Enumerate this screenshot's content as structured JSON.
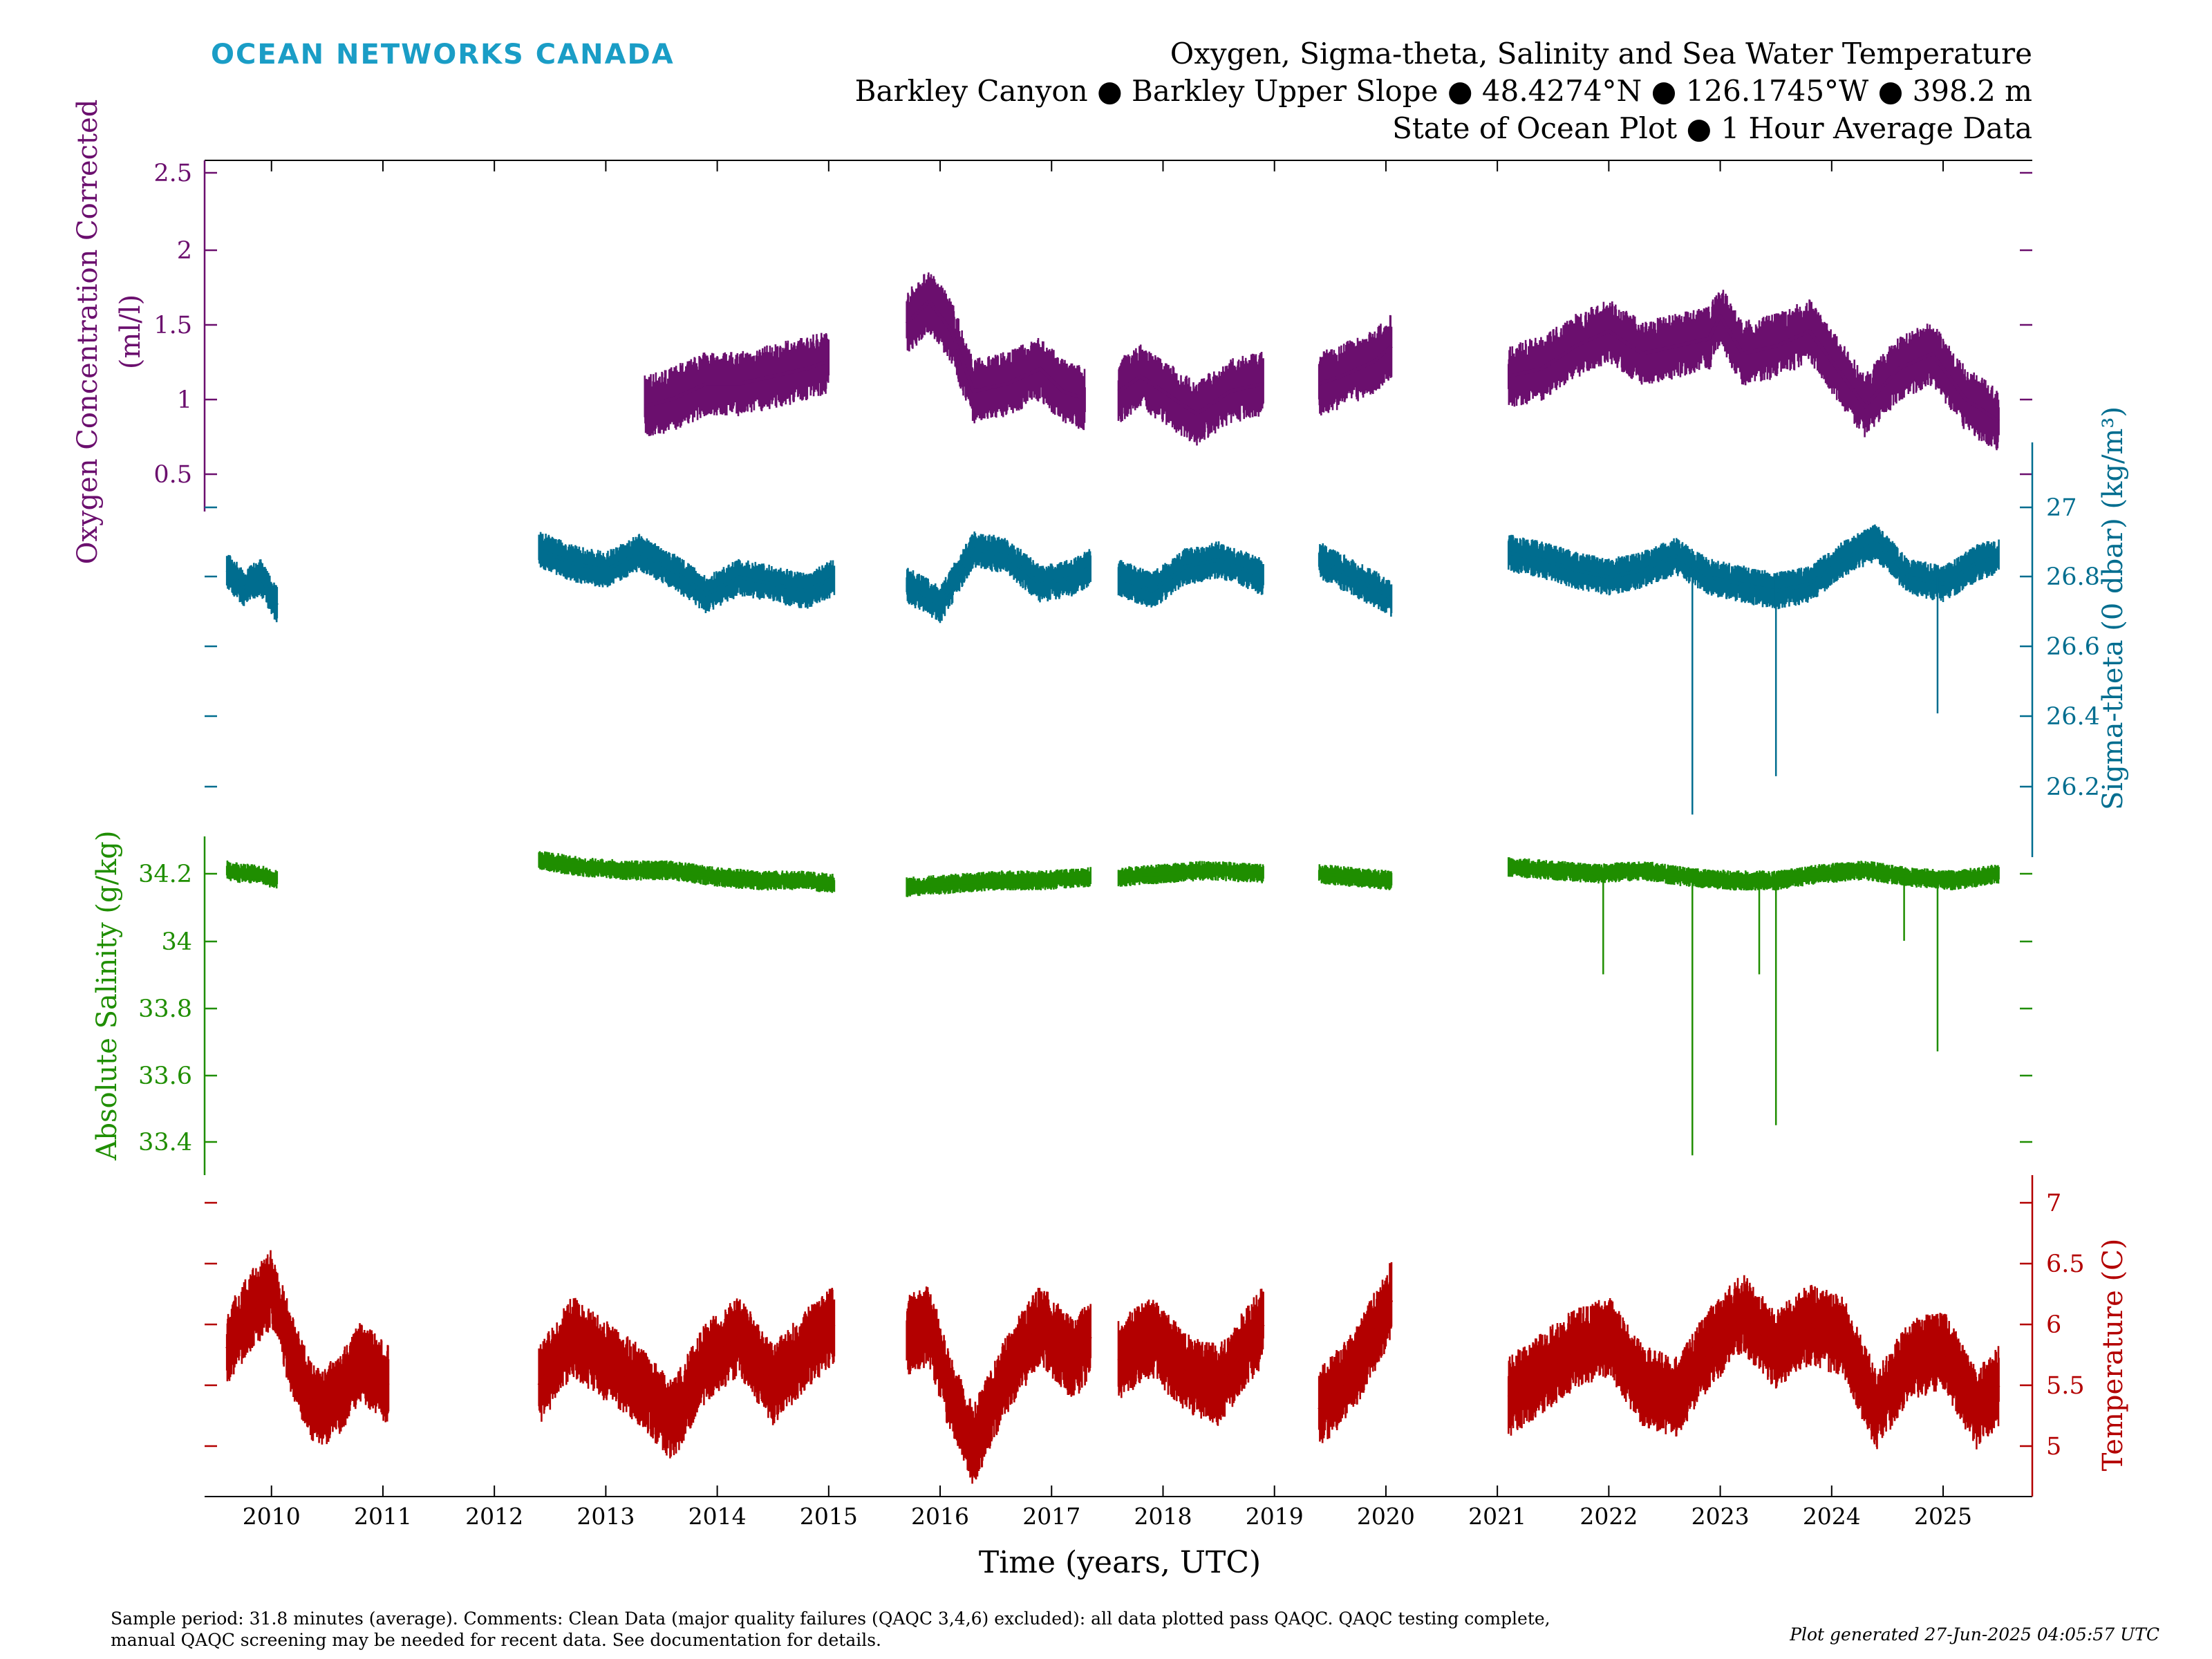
{
  "brand": {
    "name": "OCEAN NETWORKS CANADA",
    "color": "#1a9dc6"
  },
  "header": {
    "line1": "Oxygen, Sigma-theta, Salinity and Sea Water Temperature",
    "line2": "Barkley Canyon ● Barkley Upper Slope ● 48.4274°N ● 126.1745°W ● 398.2 m",
    "line3": "State of Ocean Plot ● 1 Hour Average Data"
  },
  "footer": {
    "note_line1": "Sample period: 31.8 minutes (average). Comments: Clean Data (major quality failures (QAQC 3,4,6) excluded): all data plotted pass QAQC. QAQC testing complete,",
    "note_line2": "manual QAQC screening may be needed for recent data. See documentation for details.",
    "generated": "Plot generated 27-Jun-2025 04:05:57 UTC"
  },
  "chart_data": {
    "type": "scatter",
    "xlabel": "Time (years, UTC)",
    "xlim": [
      2009.4,
      2025.8
    ],
    "x_ticks": [
      2010,
      2011,
      2012,
      2013,
      2014,
      2015,
      2016,
      2017,
      2018,
      2019,
      2020,
      2021,
      2022,
      2023,
      2024,
      2025
    ],
    "x_tick_labels": [
      "2010",
      "2011",
      "2012",
      "2013",
      "2014",
      "2015",
      "2016",
      "2017",
      "2018",
      "2019",
      "2020",
      "2021",
      "2022",
      "2023",
      "2024",
      "2025"
    ],
    "grid": false,
    "axes": [
      {
        "key": "oxygen",
        "side": "left",
        "label": "Oxygen Concentration Corrected (ml/l)",
        "label_lines": [
          "Oxygen Concentration Corrected",
          "(ml/l)"
        ],
        "color": "#6b0f6e",
        "ylim": [
          0.25,
          2.6
        ],
        "ticks": [
          0.5,
          1,
          1.5,
          2,
          2.5
        ],
        "tick_labels": [
          "0.5",
          "1",
          "1.5",
          "2",
          "2.5"
        ]
      },
      {
        "key": "sigma",
        "side": "right",
        "label": "Sigma-theta (0 dbar) (kg/m³)",
        "color": "#006d8f",
        "ylim": [
          26.0,
          27.0
        ],
        "ticks": [
          26.2,
          26.4,
          26.6,
          26.8,
          27.0
        ],
        "tick_labels": [
          "26.2",
          "26.4",
          "26.6",
          "26.8",
          "27"
        ]
      },
      {
        "key": "salinity",
        "side": "left",
        "label": "Absolute Salinity (g/kg)",
        "color": "#1f8e00",
        "ylim": [
          33.4,
          34.2
        ],
        "ticks": [
          33.4,
          33.6,
          33.8,
          34.0,
          34.2
        ],
        "tick_labels": [
          "33.4",
          "33.6",
          "33.8",
          "34",
          "34.2"
        ]
      },
      {
        "key": "temperature",
        "side": "right",
        "label": "Temperature (C)",
        "color": "#b30000",
        "ylim": [
          4.6,
          7.0
        ],
        "ticks": [
          5,
          5.5,
          6,
          6.5,
          7
        ],
        "tick_labels": [
          "5",
          "5.5",
          "6",
          "6.5",
          "7"
        ]
      }
    ],
    "series": [
      {
        "name": "",
        "axis": "oxygen",
        "segments": [
          {
            "x": [
              2013.35,
              2013.6,
              2013.9,
              2014.2,
              2014.5,
              2014.8,
              2015.0
            ],
            "y": [
              0.95,
              1.0,
              1.1,
              1.1,
              1.15,
              1.2,
              1.25
            ]
          },
          {
            "x": [
              2015.7,
              2015.9,
              2016.1,
              2016.3,
              2016.6,
              2016.9,
              2017.1,
              2017.3
            ],
            "y": [
              1.5,
              1.65,
              1.45,
              1.05,
              1.1,
              1.2,
              1.05,
              1.0
            ]
          },
          {
            "x": [
              2017.6,
              2017.8,
              2018.1,
              2018.3,
              2018.6,
              2018.9
            ],
            "y": [
              1.05,
              1.15,
              1.0,
              0.9,
              1.05,
              1.1
            ]
          },
          {
            "x": [
              2019.4,
              2019.6,
              2019.9,
              2020.05
            ],
            "y": [
              1.1,
              1.15,
              1.25,
              1.35
            ]
          },
          {
            "x": [
              2021.1,
              2021.4,
              2021.7,
              2022.0,
              2022.3,
              2022.6,
              2022.9,
              2023.0,
              2023.2,
              2023.5,
              2023.8,
              2024.0,
              2024.3,
              2024.6,
              2024.9,
              2025.2,
              2025.5
            ],
            "y": [
              1.15,
              1.2,
              1.35,
              1.45,
              1.3,
              1.35,
              1.4,
              1.55,
              1.3,
              1.35,
              1.45,
              1.25,
              0.95,
              1.2,
              1.3,
              1.0,
              0.85
            ]
          }
        ]
      },
      {
        "name": "",
        "axis": "sigma",
        "segments": [
          {
            "x": [
              2009.6,
              2009.75,
              2009.9,
              2010.05
            ],
            "y": [
              26.82,
              26.77,
              26.8,
              26.72
            ]
          },
          {
            "x": [
              2012.4,
              2012.7,
              2013.0,
              2013.3,
              2013.6,
              2013.9,
              2014.2,
              2014.5,
              2014.8,
              2015.05
            ],
            "y": [
              26.88,
              26.84,
              26.82,
              26.87,
              26.82,
              26.75,
              26.8,
              26.78,
              26.76,
              26.8
            ]
          },
          {
            "x": [
              2015.7,
              2016.0,
              2016.3,
              2016.6,
              2016.9,
              2017.2,
              2017.35
            ],
            "y": [
              26.78,
              26.72,
              26.88,
              26.86,
              26.78,
              26.8,
              26.83
            ]
          },
          {
            "x": [
              2017.6,
              2017.9,
              2018.2,
              2018.5,
              2018.9
            ],
            "y": [
              26.8,
              26.76,
              26.83,
              26.85,
              26.8
            ]
          },
          {
            "x": [
              2019.4,
              2019.7,
              2020.05
            ],
            "y": [
              26.85,
              26.8,
              26.74
            ]
          },
          {
            "x": [
              2021.1,
              2021.4,
              2021.7,
              2022.0,
              2022.3,
              2022.6,
              2022.9,
              2023.2,
              2023.5,
              2023.8,
              2024.1,
              2024.4,
              2024.7,
              2025.0,
              2025.3,
              2025.5
            ],
            "y": [
              26.87,
              26.85,
              26.82,
              26.8,
              26.82,
              26.86,
              26.8,
              26.78,
              26.76,
              26.78,
              26.85,
              26.9,
              26.8,
              26.78,
              26.84,
              26.86
            ]
          }
        ]
      },
      {
        "name": "",
        "axis": "salinity",
        "segments": [
          {
            "x": [
              2009.6,
              2009.75,
              2009.9,
              2010.05
            ],
            "y": [
              34.21,
              34.2,
              34.2,
              34.18
            ]
          },
          {
            "x": [
              2012.4,
              2012.8,
              2013.2,
              2013.6,
              2014.0,
              2014.4,
              2014.8,
              2015.05
            ],
            "y": [
              34.24,
              34.22,
              34.21,
              34.21,
              34.19,
              34.18,
              34.18,
              34.17
            ]
          },
          {
            "x": [
              2015.7,
              2016.1,
              2016.5,
              2016.9,
              2017.35
            ],
            "y": [
              34.16,
              34.17,
              34.18,
              34.18,
              34.19
            ]
          },
          {
            "x": [
              2017.6,
              2018.0,
              2018.4,
              2018.9
            ],
            "y": [
              34.19,
              34.2,
              34.21,
              34.2
            ]
          },
          {
            "x": [
              2019.4,
              2019.7,
              2020.05
            ],
            "y": [
              34.2,
              34.19,
              34.18
            ]
          },
          {
            "x": [
              2021.1,
              2021.5,
              2021.9,
              2022.3,
              2022.7,
              2023.1,
              2023.5,
              2023.9,
              2024.3,
              2024.7,
              2025.1,
              2025.5
            ],
            "y": [
              34.22,
              34.21,
              34.2,
              34.21,
              34.19,
              34.18,
              34.18,
              34.2,
              34.21,
              34.19,
              34.18,
              34.2
            ]
          }
        ]
      },
      {
        "name": "",
        "axis": "temperature",
        "segments": [
          {
            "x": [
              2009.6,
              2009.8,
              2010.0,
              2010.2,
              2010.4,
              2010.6,
              2010.8,
              2011.05
            ],
            "y": [
              5.8,
              6.1,
              6.3,
              5.7,
              5.3,
              5.4,
              5.7,
              5.5
            ]
          },
          {
            "x": [
              2012.4,
              2012.7,
              2013.0,
              2013.3,
              2013.6,
              2013.9,
              2014.2,
              2014.5,
              2014.8,
              2015.05
            ],
            "y": [
              5.5,
              5.9,
              5.7,
              5.5,
              5.2,
              5.7,
              5.9,
              5.5,
              5.8,
              6.0
            ]
          },
          {
            "x": [
              2015.7,
              2015.9,
              2016.1,
              2016.3,
              2016.6,
              2016.9,
              2017.2,
              2017.35
            ],
            "y": [
              5.9,
              6.0,
              5.4,
              5.0,
              5.6,
              6.0,
              5.7,
              5.9
            ]
          },
          {
            "x": [
              2017.6,
              2017.9,
              2018.2,
              2018.5,
              2018.9
            ],
            "y": [
              5.7,
              5.9,
              5.6,
              5.5,
              6.0
            ]
          },
          {
            "x": [
              2019.4,
              2019.7,
              2020.05
            ],
            "y": [
              5.3,
              5.6,
              6.2
            ]
          },
          {
            "x": [
              2021.1,
              2021.4,
              2021.7,
              2022.0,
              2022.3,
              2022.6,
              2022.9,
              2023.2,
              2023.5,
              2023.8,
              2024.1,
              2024.4,
              2024.7,
              2025.0,
              2025.3,
              2025.5
            ],
            "y": [
              5.4,
              5.6,
              5.8,
              5.9,
              5.5,
              5.4,
              5.8,
              6.1,
              5.8,
              6.0,
              5.9,
              5.3,
              5.7,
              5.8,
              5.3,
              5.5
            ]
          }
        ]
      }
    ],
    "spikes": [
      {
        "axis": "sigma",
        "x": 2022.75,
        "y": 26.12
      },
      {
        "axis": "sigma",
        "x": 2023.5,
        "y": 26.23
      },
      {
        "axis": "sigma",
        "x": 2024.95,
        "y": 26.41
      },
      {
        "axis": "salinity",
        "x": 2021.95,
        "y": 33.9
      },
      {
        "axis": "salinity",
        "x": 2022.75,
        "y": 33.36
      },
      {
        "axis": "salinity",
        "x": 2023.35,
        "y": 33.9
      },
      {
        "axis": "salinity",
        "x": 2023.5,
        "y": 33.45
      },
      {
        "axis": "salinity",
        "x": 2024.65,
        "y": 34.0
      },
      {
        "axis": "salinity",
        "x": 2024.95,
        "y": 33.67
      }
    ]
  }
}
